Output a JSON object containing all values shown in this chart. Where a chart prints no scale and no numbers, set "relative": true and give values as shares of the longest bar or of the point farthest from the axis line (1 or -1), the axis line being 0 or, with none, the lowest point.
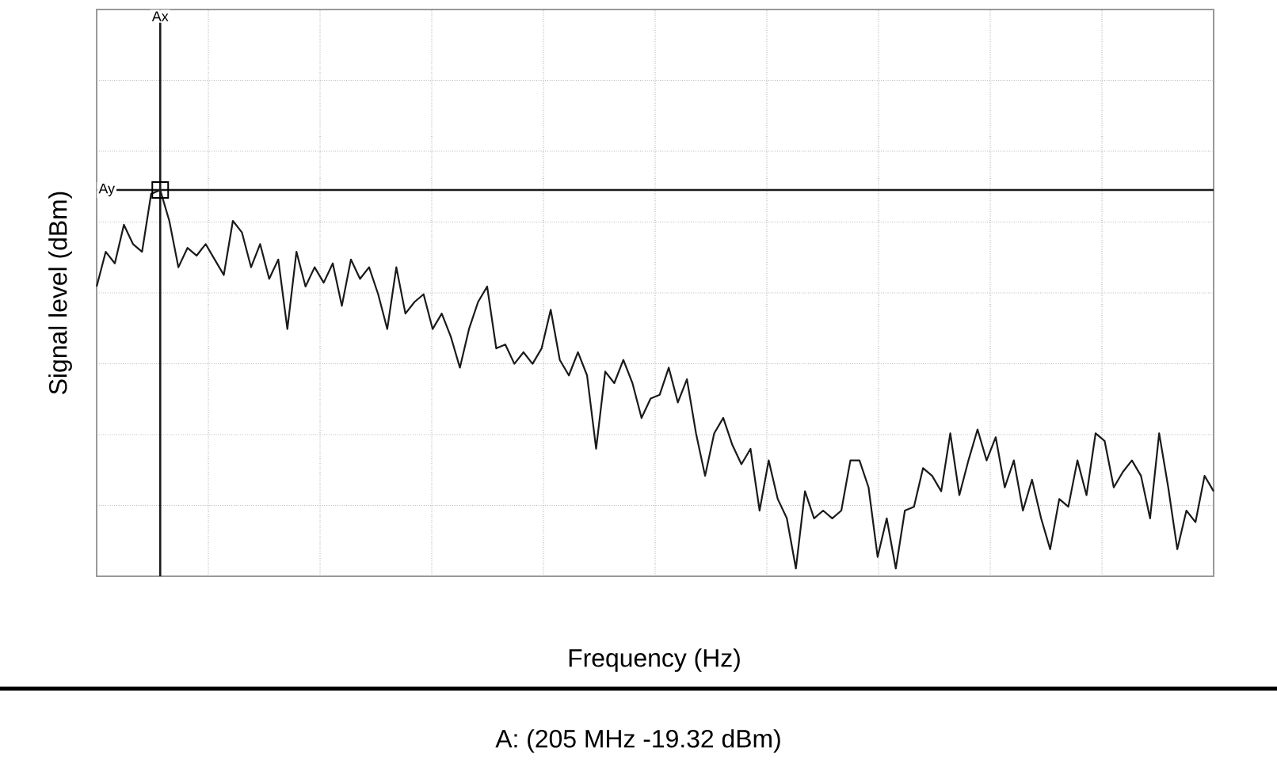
{
  "chart_data": {
    "type": "line",
    "relative": true,
    "xlabel": "Frequency (Hz)",
    "ylabel": "Signal level (dBm)",
    "annotations": [
      "A: (205 MHz -19.32 dBm)",
      "Ax"
    ],
    "categories": [
      null,
      null,
      null,
      null,
      null,
      null,
      null,
      null,
      null,
      null,
      null,
      null,
      null,
      null,
      null,
      null,
      null,
      null,
      null,
      null,
      null,
      null,
      null,
      null,
      null,
      null,
      null,
      null,
      null,
      null,
      null,
      null,
      null,
      null,
      null,
      null,
      null,
      null,
      null,
      null,
      null,
      null,
      null,
      null,
      null,
      null,
      null,
      null,
      null,
      null,
      null,
      null,
      null,
      null,
      null,
      null,
      null,
      null,
      null,
      null,
      null,
      null,
      null,
      null,
      null,
      null,
      null,
      null,
      null,
      null,
      null,
      null,
      null,
      null,
      null,
      null,
      null,
      null,
      null,
      null,
      null,
      null,
      null,
      null,
      null,
      null,
      null,
      null,
      null,
      null,
      null,
      null,
      null,
      null,
      null,
      null,
      null,
      null,
      null,
      null,
      null,
      null,
      null,
      null,
      null,
      null,
      null,
      null,
      null,
      null,
      null,
      null,
      null,
      null,
      null,
      null,
      null,
      null,
      null,
      null,
      null,
      null,
      null,
      null
    ],
    "grid": true,
    "marker": "none",
    "line_style": "solid",
    "ref_lines": [
      {
        "axis": "y",
        "value": 1.0,
        "label": "Ay",
        "color": "#1a1a1a"
      }
    ],
    "series": [
      {
        "color": "#1a1a1a",
        "values": [
          0.75,
          0.84,
          0.81,
          0.91,
          0.86,
          0.84,
          0.99,
          1.0,
          0.92,
          0.8,
          0.85,
          0.83,
          0.86,
          0.82,
          0.78,
          0.92,
          0.89,
          0.8,
          0.86,
          0.77,
          0.82,
          0.64,
          0.84,
          0.75,
          0.8,
          0.76,
          0.81,
          0.7,
          0.82,
          0.77,
          0.8,
          0.73,
          0.64,
          0.8,
          0.68,
          0.71,
          0.73,
          0.64,
          0.68,
          0.62,
          0.54,
          0.64,
          0.71,
          0.75,
          0.59,
          0.6,
          0.55,
          0.58,
          0.55,
          0.59,
          0.69,
          0.56,
          0.52,
          0.58,
          0.52,
          0.33,
          0.53,
          0.5,
          0.56,
          0.5,
          0.41,
          0.46,
          0.47,
          0.54,
          0.45,
          0.51,
          0.37,
          0.26,
          0.37,
          0.41,
          0.34,
          0.29,
          0.33,
          0.17,
          0.3,
          0.2,
          0.15,
          0.02,
          0.22,
          0.15,
          0.17,
          0.15,
          0.17,
          0.3,
          0.3,
          0.23,
          0.05,
          0.15,
          0.02,
          0.17,
          0.18,
          0.28,
          0.26,
          0.22,
          0.37,
          0.21,
          0.3,
          0.38,
          0.3,
          0.36,
          0.23,
          0.3,
          0.17,
          0.25,
          0.15,
          0.07,
          0.2,
          0.18,
          0.3,
          0.21,
          0.37,
          0.35,
          0.23,
          0.27,
          0.3,
          0.26,
          0.15,
          0.37,
          0.23,
          0.07,
          0.17,
          0.14,
          0.26,
          0.22
        ]
      }
    ]
  }
}
